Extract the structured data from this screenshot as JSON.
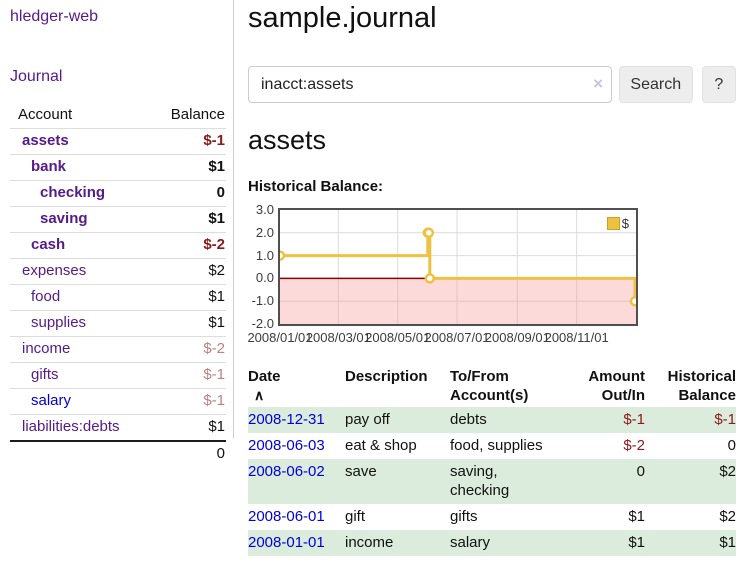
{
  "colors": {
    "link_visited": "#551a8b",
    "link_unvisited": "#0000dd",
    "negative": "#8b1a1a",
    "negative_faded": "#bd8181",
    "row_shade_green": "#dcecdc",
    "series_gold": "#edc240",
    "chart_negative_fill": "rgba(250,140,140,0.32)",
    "zero_line": "#8b0000"
  },
  "sidebar": {
    "brand": "hledger-web",
    "nav_journal": "Journal",
    "accounts_table": {
      "account_header": "Account",
      "balance_header": "Balance",
      "rows": [
        {
          "name": "assets",
          "indent": 1,
          "bold": true,
          "link": "visited",
          "balance": "$-1",
          "balance_style": "negative"
        },
        {
          "name": "bank",
          "indent": 2,
          "bold": true,
          "link": "visited",
          "balance": "$1",
          "balance_style": "normal"
        },
        {
          "name": "checking",
          "indent": 3,
          "bold": true,
          "link": "visited",
          "balance": "0",
          "balance_style": "normal"
        },
        {
          "name": "saving",
          "indent": 3,
          "bold": true,
          "link": "visited",
          "balance": "$1",
          "balance_style": "normal"
        },
        {
          "name": "cash",
          "indent": 2,
          "bold": true,
          "link": "visited",
          "balance": "$-2",
          "balance_style": "negative"
        },
        {
          "name": "expenses",
          "indent": 1,
          "bold": false,
          "link": "visited",
          "balance": "$2",
          "balance_style": "normal"
        },
        {
          "name": "food",
          "indent": 2,
          "bold": false,
          "link": "visited",
          "balance": "$1",
          "balance_style": "normal"
        },
        {
          "name": "supplies",
          "indent": 2,
          "bold": false,
          "link": "visited",
          "balance": "$1",
          "balance_style": "normal"
        },
        {
          "name": "income",
          "indent": 1,
          "bold": false,
          "link": "visited",
          "balance": "$-2",
          "balance_style": "negative-faded"
        },
        {
          "name": "gifts",
          "indent": 2,
          "bold": false,
          "link": "visited",
          "balance": "$-1",
          "balance_style": "negative-faded"
        },
        {
          "name": "salary",
          "indent": 2,
          "bold": false,
          "link": "unvisited",
          "balance": "$-1",
          "balance_style": "negative-faded"
        },
        {
          "name": "liabilities:debts",
          "indent": 1,
          "bold": false,
          "link": "visited",
          "balance": "$1",
          "balance_style": "normal"
        }
      ],
      "total": "0"
    }
  },
  "main": {
    "title": "sample.journal",
    "search": {
      "value": "inacct:assets",
      "clear_icon": "×",
      "search_button": "Search",
      "help_button": "?"
    },
    "account_heading": "assets",
    "chart_title": "Historical Balance:"
  },
  "chart_data": {
    "type": "line",
    "step": true,
    "title": "Historical Balance",
    "series": [
      {
        "name": "$",
        "color": "#edc240",
        "points": [
          [
            "2008-01-01",
            1
          ],
          [
            "2008-06-01",
            2
          ],
          [
            "2008-06-02",
            2
          ],
          [
            "2008-06-03",
            0
          ],
          [
            "2008-12-31",
            -1
          ]
        ]
      }
    ],
    "x_range": [
      "2008-01-01",
      "2009-01-01"
    ],
    "ylim": [
      -2,
      3
    ],
    "y_ticks": [
      {
        "v": 3,
        "label": "3.0"
      },
      {
        "v": 2,
        "label": "2.0"
      },
      {
        "v": 1,
        "label": "1.0"
      },
      {
        "v": 0,
        "label": "0.0"
      },
      {
        "v": -1,
        "label": "-1.0"
      },
      {
        "v": -2,
        "label": "-2.0"
      }
    ],
    "x_ticks": [
      {
        "date": "2008-01-01",
        "label": "2008/01/01"
      },
      {
        "date": "2008-03-01",
        "label": "2008/03/01"
      },
      {
        "date": "2008-05-01",
        "label": "2008/05/01"
      },
      {
        "date": "2008-07-01",
        "label": "2008/07/01"
      },
      {
        "date": "2008-09-01",
        "label": "2008/09/01"
      },
      {
        "date": "2008-11-01",
        "label": "2008/11/01"
      }
    ],
    "grid": true,
    "legend_position": "top-right",
    "negative_fill": "rgba(250,140,140,0.32)",
    "zero_line_color": "#8b0000"
  },
  "transactions": {
    "sort_indicator": "∧",
    "columns": [
      {
        "label": "Date",
        "label2": ""
      },
      {
        "label": "Description",
        "label2": ""
      },
      {
        "label": "To/From",
        "label2": "Account(s)"
      },
      {
        "label": "Amount",
        "label2": "Out/In"
      },
      {
        "label": "Historical",
        "label2": "Balance"
      }
    ],
    "rows": [
      {
        "date": "2008-12-31",
        "description": "pay off",
        "accounts": "debts",
        "amount": "$-1",
        "amount_style": "negative",
        "balance": "$-1",
        "balance_style": "negative",
        "shaded": true
      },
      {
        "date": "2008-06-03",
        "description": "eat & shop",
        "accounts": "food, supplies",
        "amount": "$-2",
        "amount_style": "negative",
        "balance": "0",
        "balance_style": "normal",
        "shaded": false
      },
      {
        "date": "2008-06-02",
        "description": "save",
        "accounts": "saving,\nchecking",
        "amount": "0",
        "amount_style": "normal",
        "balance": "$2",
        "balance_style": "normal",
        "shaded": true
      },
      {
        "date": "2008-06-01",
        "description": "gift",
        "accounts": "gifts",
        "amount": "$1",
        "amount_style": "normal",
        "balance": "$2",
        "balance_style": "normal",
        "shaded": false
      },
      {
        "date": "2008-01-01",
        "description": "income",
        "accounts": "salary",
        "amount": "$1",
        "amount_style": "normal",
        "balance": "$1",
        "balance_style": "normal",
        "shaded": true
      }
    ]
  }
}
